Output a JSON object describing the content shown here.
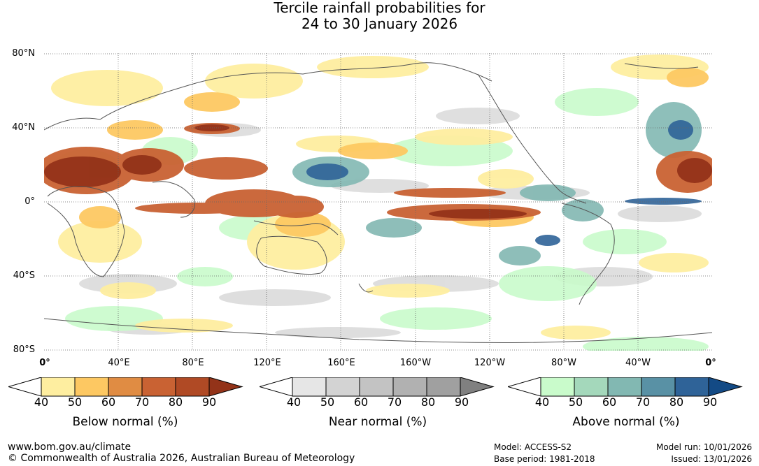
{
  "title": {
    "line1": "Tercile rainfall probabilities for",
    "line2": "24 to 30 January 2026"
  },
  "axes": {
    "lat_labels": [
      "80°N",
      "40°N",
      "0°",
      "40°S",
      "80°S"
    ],
    "lon_labels": [
      "0°",
      "40°E",
      "80°E",
      "120°E",
      "160°E",
      "160°W",
      "120°W",
      "80°W",
      "40°W",
      "0°"
    ]
  },
  "legends": [
    {
      "title": "Below normal (%)",
      "ticks": [
        "40",
        "50",
        "60",
        "70",
        "80",
        "90"
      ],
      "colors": [
        "#ffffff",
        "#feeea0",
        "#fdc862",
        "#e08c43",
        "#c96233",
        "#b04a25",
        "#933319"
      ]
    },
    {
      "title": "Near normal (%)",
      "ticks": [
        "40",
        "50",
        "60",
        "70",
        "80",
        "90"
      ],
      "colors": [
        "#ffffff",
        "#e6e6e6",
        "#d3d3d3",
        "#c3c3c3",
        "#b1b1b1",
        "#a0a0a0",
        "#808080"
      ]
    },
    {
      "title": "Above normal (%)",
      "ticks": [
        "40",
        "50",
        "60",
        "70",
        "80",
        "90"
      ],
      "colors": [
        "#ffffff",
        "#c9fbcb",
        "#a4d8bb",
        "#82b8b2",
        "#5991a5",
        "#2f6398",
        "#134a85"
      ]
    }
  ],
  "footer": {
    "website": "www.bom.gov.au/climate",
    "copyright": "© Commonwealth of Australia 2026, Australian Bureau of Meteorology",
    "model": "Model: ACCESS-S2",
    "base_period": "Base period: 1981-2018",
    "model_run": "Model run: 10/01/2026",
    "issued": "Issued: 13/01/2026"
  }
}
